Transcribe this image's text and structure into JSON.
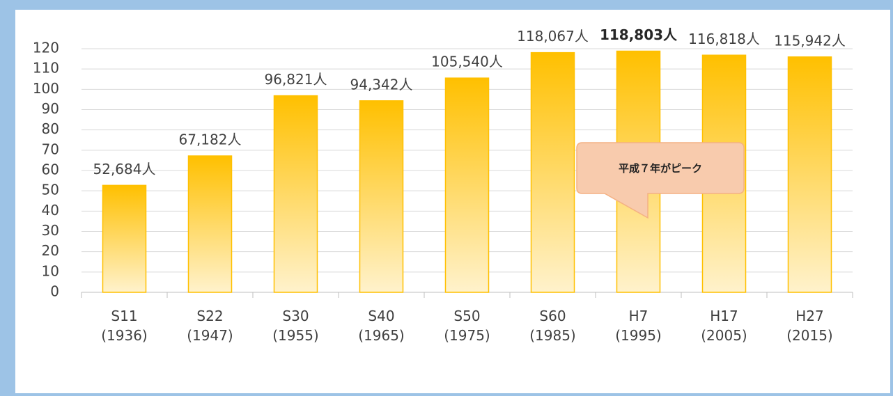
{
  "chart_data": {
    "type": "bar",
    "categories": [
      "S11\n(1936)",
      "S22\n(1947)",
      "S30\n(1955)",
      "S40\n(1965)",
      "S50\n(1975)",
      "S60\n(1985)",
      "H7\n(1995)",
      "H17\n(2005)",
      "H27\n(2015)"
    ],
    "values": [
      52.684,
      67.182,
      96.821,
      94.342,
      105.54,
      118.067,
      118.803,
      116.818,
      115.942
    ],
    "value_labels": [
      "52,684人",
      "67,182人",
      "96,821人",
      "94,342人",
      "105,540人",
      "118,067人",
      "118,803人",
      "116,818人",
      "115,942人"
    ],
    "color": "#ffc000",
    "ylim": [
      0,
      120
    ],
    "yticks": [
      0,
      10,
      20,
      30,
      40,
      50,
      60,
      70,
      80,
      90,
      100,
      110,
      120
    ],
    "grid": true,
    "highlight_index": 6,
    "annotation": "平成７年がピーク"
  }
}
